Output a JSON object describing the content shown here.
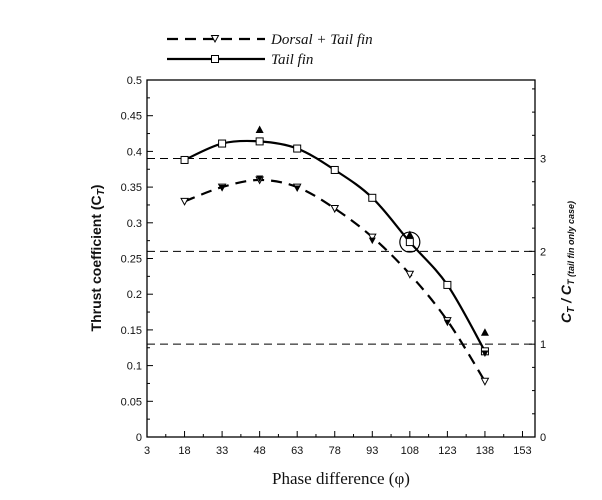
{
  "chart_data": {
    "type": "line",
    "xlabel": "Phase difference (φ)",
    "ylabel": "Thrust coefficient (C",
    "ylabel_sub": "T",
    "ylabel_end": ")",
    "y2label": "C",
    "y2label_sub1": "T",
    "y2label_mid": " / C",
    "y2label_sub2": "T (tail fin only case)",
    "xlim": [
      3,
      158
    ],
    "ylim": [
      0,
      0.5
    ],
    "y2lim": [
      0,
      3.846
    ],
    "x_ticks": [
      3,
      18,
      33,
      48,
      63,
      78,
      93,
      108,
      123,
      138,
      153
    ],
    "x_tick_labels": [
      "3",
      "18",
      "33",
      "48",
      "63",
      "78",
      "93",
      "108",
      "123",
      "138",
      "153"
    ],
    "y_ticks": [
      0,
      0.05,
      0.1,
      0.15,
      0.2,
      0.25,
      0.3,
      0.35,
      0.4,
      0.45,
      0.5
    ],
    "y_tick_labels": [
      "0",
      "0.05",
      "0.1",
      "0.15",
      "0.2",
      "0.25",
      "0.3",
      "0.35",
      "0.4",
      "0.45",
      "0.5"
    ],
    "y2_ticks": [
      0,
      1,
      2,
      3
    ],
    "y2_tick_labels": [
      "0",
      "1",
      "2",
      "3"
    ],
    "reference_lines_y2": [
      1,
      2,
      3
    ],
    "legend_position": "top-left, above plot",
    "series": [
      {
        "name": "Dorsal + Tail fin",
        "line_style": "dashed",
        "marker": "triangle-down-open",
        "color": "#000000",
        "x": [
          18,
          33,
          48,
          63,
          78,
          93,
          108,
          123,
          138
        ],
        "y": [
          0.33,
          0.35,
          0.36,
          0.35,
          0.32,
          0.28,
          0.228,
          0.163,
          0.078
        ]
      },
      {
        "name": "Tail fin",
        "line_style": "solid",
        "marker": "square-open",
        "color": "#000000",
        "x": [
          18,
          33,
          48,
          63,
          78,
          93,
          108,
          123,
          138
        ],
        "y": [
          0.388,
          0.411,
          0.414,
          0.404,
          0.374,
          0.335,
          0.273,
          0.213,
          0.12
        ]
      }
    ],
    "extra_markers": [
      {
        "shape": "triangle-up-filled",
        "points": [
          {
            "x": 48,
            "y": 0.43
          },
          {
            "x": 108,
            "y": 0.283
          },
          {
            "x": 138,
            "y": 0.146
          }
        ]
      },
      {
        "shape": "triangle-down-filled",
        "points": [
          {
            "x": 33,
            "y": 0.349
          },
          {
            "x": 48,
            "y": 0.362
          },
          {
            "x": 63,
            "y": 0.348
          },
          {
            "x": 93,
            "y": 0.275
          },
          {
            "x": 123,
            "y": 0.16
          },
          {
            "x": 138,
            "y": 0.117
          }
        ]
      }
    ],
    "annotations": [
      {
        "type": "circle",
        "x": 108,
        "y": 0.273
      }
    ],
    "grid": false
  }
}
